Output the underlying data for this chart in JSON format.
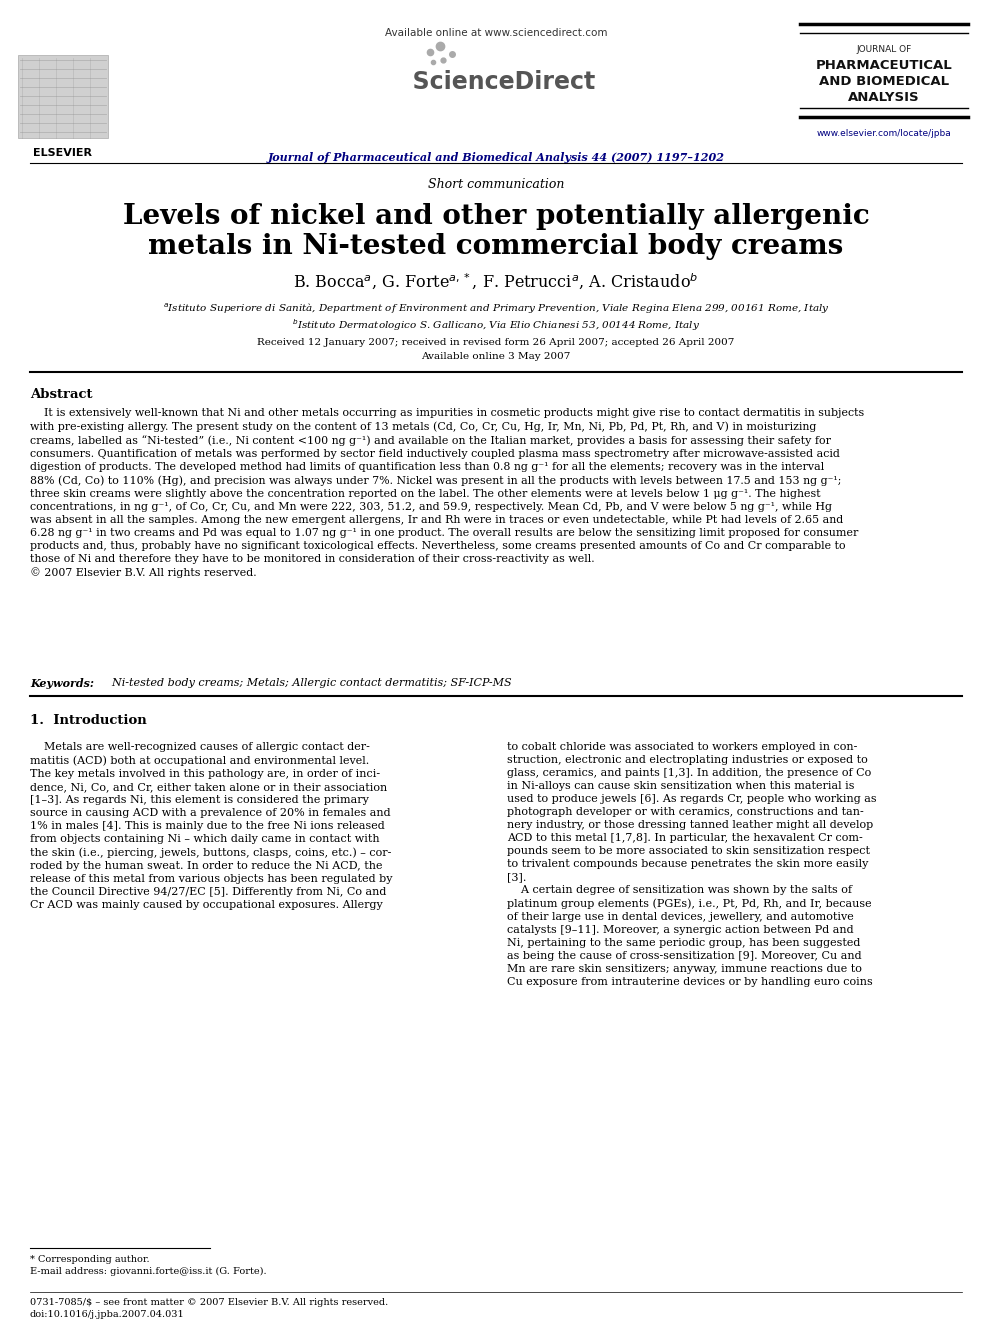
{
  "title_main_line1": "Levels of nickel and other potentially allergenic",
  "title_main_line2": "metals in Ni-tested commercial body creams",
  "short_comm": "Short communication",
  "affil_a": "$^a$Istituto Superiore di Sanità, Department of Environment and Primary Prevention, Viale Regina Elena 299, 00161 Rome, Italy",
  "affil_b": "$^b$Istituto Dermatologico S. Gallicano, Via Elio Chianesi 53, 00144 Rome, Italy",
  "dates": "Received 12 January 2007; received in revised form 26 April 2007; accepted 26 April 2007",
  "available_online_date": "Available online 3 May 2007",
  "journal_name": "Journal of Pharmaceutical and Biomedical Analysis 44 (2007) 1197–1202",
  "available_online_hdr": "Available online at www.sciencedirect.com",
  "journal_box_line1": "JOURNAL OF",
  "journal_box_line2": "PHARMACEUTICAL",
  "journal_box_line3": "AND BIOMEDICAL",
  "journal_box_line4": "ANALYSIS",
  "website": "www.elsevier.com/locate/jpba",
  "elsevier": "ELSEVIER",
  "abstract_title": "Abstract",
  "abstract_text": "    It is extensively well-known that Ni and other metals occurring as impurities in cosmetic products might give rise to contact dermatitis in subjects\nwith pre-existing allergy. The present study on the content of 13 metals (Cd, Co, Cr, Cu, Hg, Ir, Mn, Ni, Pb, Pd, Pt, Rh, and V) in moisturizing\ncreams, labelled as “Ni-tested” (i.e., Ni content <100 ng g⁻¹) and available on the Italian market, provides a basis for assessing their safety for\nconsumers. Quantification of metals was performed by sector field inductively coupled plasma mass spectrometry after microwave-assisted acid\ndigestion of products. The developed method had limits of quantification less than 0.8 ng g⁻¹ for all the elements; recovery was in the interval\n88% (Cd, Co) to 110% (Hg), and precision was always under 7%. Nickel was present in all the products with levels between 17.5 and 153 ng g⁻¹;\nthree skin creams were slightly above the concentration reported on the label. The other elements were at levels below 1 μg g⁻¹. The highest\nconcentrations, in ng g⁻¹, of Co, Cr, Cu, and Mn were 222, 303, 51.2, and 59.9, respectively. Mean Cd, Pb, and V were below 5 ng g⁻¹, while Hg\nwas absent in all the samples. Among the new emergent allergens, Ir and Rh were in traces or even undetectable, while Pt had levels of 2.65 and\n6.28 ng g⁻¹ in two creams and Pd was equal to 1.07 ng g⁻¹ in one product. The overall results are below the sensitizing limit proposed for consumer\nproducts and, thus, probably have no significant toxicological effects. Nevertheless, some creams presented amounts of Co and Cr comparable to\nthose of Ni and therefore they have to be monitored in consideration of their cross-reactivity as well.\n© 2007 Elsevier B.V. All rights reserved.",
  "keywords_label": "Keywords:",
  "keywords_text": "  Ni-tested body creams; Metals; Allergic contact dermatitis; SF-ICP-MS",
  "section1_title": "1.  Introduction",
  "intro_left": "    Metals are well-recognized causes of allergic contact der-\nmatitis (ACD) both at occupational and environmental level.\nThe key metals involved in this pathology are, in order of inci-\ndence, Ni, Co, and Cr, either taken alone or in their association\n[1–3]. As regards Ni, this element is considered the primary\nsource in causing ACD with a prevalence of 20% in females and\n1% in males [4]. This is mainly due to the free Ni ions released\nfrom objects containing Ni – which daily came in contact with\nthe skin (i.e., piercing, jewels, buttons, clasps, coins, etc.) – cor-\nroded by the human sweat. In order to reduce the Ni ACD, the\nrelease of this metal from various objects has been regulated by\nthe Council Directive 94/27/EC [5]. Differently from Ni, Co and\nCr ACD was mainly caused by occupational exposures. Allergy",
  "intro_right": "to cobalt chloride was associated to workers employed in con-\nstruction, electronic and electroplating industries or exposed to\nglass, ceramics, and paints [1,3]. In addition, the presence of Co\nin Ni-alloys can cause skin sensitization when this material is\nused to produce jewels [6]. As regards Cr, people who working as\nphotograph developer or with ceramics, constructions and tan-\nnery industry, or those dressing tanned leather might all develop\nACD to this metal [1,7,8]. In particular, the hexavalent Cr com-\npounds seem to be more associated to skin sensitization respect\nto trivalent compounds because penetrates the skin more easily\n[3].\n    A certain degree of sensitization was shown by the salts of\nplatinum group elements (PGEs), i.e., Pt, Pd, Rh, and Ir, because\nof their large use in dental devices, jewellery, and automotive\ncatalysts [9–11]. Moreover, a synergic action between Pd and\nNi, pertaining to the same periodic group, has been suggested\nas being the cause of cross-sensitization [9]. Moreover, Cu and\nMn are rare skin sensitizers; anyway, immune reactions due to\nCu exposure from intrauterine devices or by handling euro coins",
  "footnote_star": "* Corresponding author.",
  "footnote_email": "E-mail address: giovanni.forte@iss.it (G. Forte).",
  "footer_issn": "0731-7085/$ – see front matter © 2007 Elsevier B.V. All rights reserved.",
  "footer_doi": "doi:10.1016/j.jpba.2007.04.031",
  "bg_color": "#ffffff"
}
